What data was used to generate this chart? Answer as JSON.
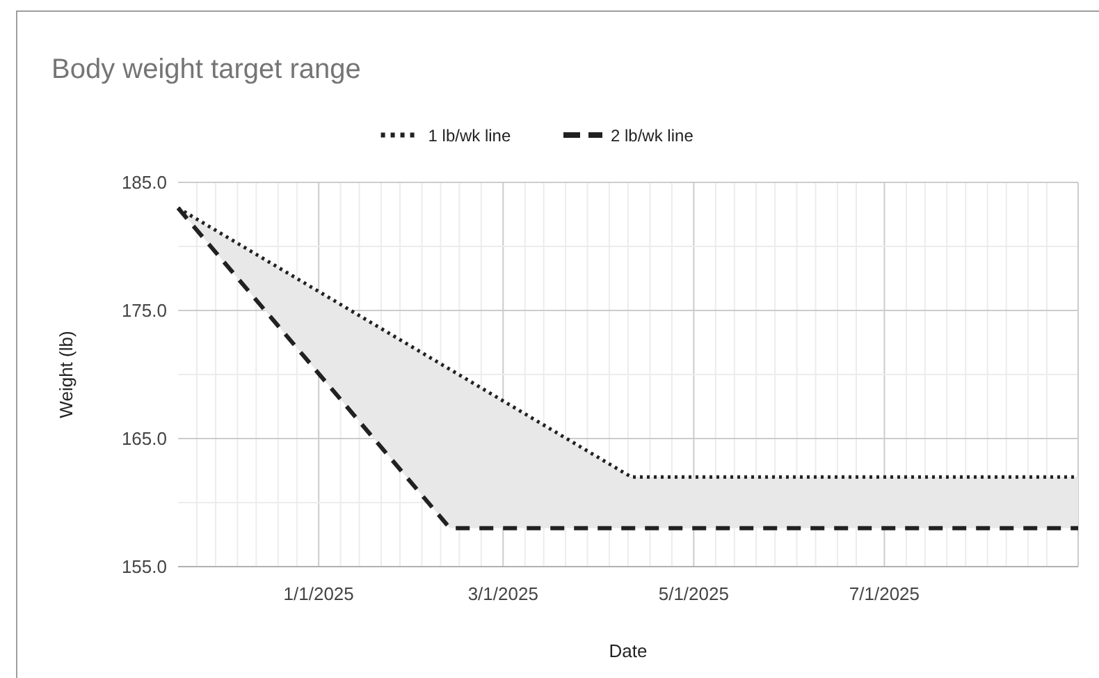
{
  "chart_data": {
    "type": "line",
    "title": "Body weight target range",
    "xlabel": "Date",
    "ylabel": "Weight (lb)",
    "xlim": [
      "2024-11-17",
      "2025-09-01"
    ],
    "xticks": [
      {
        "value": "2024-11-23",
        "label": null
      },
      {
        "value": "2024-11-29",
        "label": null
      },
      {
        "value": "2024-12-06",
        "label": null
      },
      {
        "value": "2024-12-12",
        "label": null
      },
      {
        "value": "2024-12-19",
        "label": null
      },
      {
        "value": "2024-12-25",
        "label": null
      },
      {
        "value": "2025-01-01",
        "label": "1/1/2025"
      },
      {
        "value": "2025-01-08",
        "label": null
      },
      {
        "value": "2025-01-14",
        "label": null
      },
      {
        "value": "2025-01-21",
        "label": null
      },
      {
        "value": "2025-01-27",
        "label": null
      },
      {
        "value": "2025-02-03",
        "label": null
      },
      {
        "value": "2025-02-09",
        "label": null
      },
      {
        "value": "2025-02-15",
        "label": null
      },
      {
        "value": "2025-02-22",
        "label": null
      },
      {
        "value": "2025-03-01",
        "label": "3/1/2025"
      },
      {
        "value": "2025-03-08",
        "label": null
      },
      {
        "value": "2025-03-14",
        "label": null
      },
      {
        "value": "2025-03-21",
        "label": null
      },
      {
        "value": "2025-03-28",
        "label": null
      },
      {
        "value": "2025-04-04",
        "label": null
      },
      {
        "value": "2025-04-10",
        "label": null
      },
      {
        "value": "2025-04-17",
        "label": null
      },
      {
        "value": "2025-04-24",
        "label": null
      },
      {
        "value": "2025-05-01",
        "label": "5/1/2025"
      },
      {
        "value": "2025-05-08",
        "label": null
      },
      {
        "value": "2025-05-14",
        "label": null
      },
      {
        "value": "2025-05-21",
        "label": null
      },
      {
        "value": "2025-05-27",
        "label": null
      },
      {
        "value": "2025-06-03",
        "label": null
      },
      {
        "value": "2025-06-09",
        "label": null
      },
      {
        "value": "2025-06-16",
        "label": null
      },
      {
        "value": "2025-06-22",
        "label": null
      },
      {
        "value": "2025-07-01",
        "label": "7/1/2025"
      },
      {
        "value": "2025-07-08",
        "label": null
      },
      {
        "value": "2025-07-14",
        "label": null
      },
      {
        "value": "2025-07-21",
        "label": null
      },
      {
        "value": "2025-07-27",
        "label": null
      },
      {
        "value": "2025-08-03",
        "label": null
      },
      {
        "value": "2025-08-09",
        "label": null
      },
      {
        "value": "2025-08-16",
        "label": null
      },
      {
        "value": "2025-08-22",
        "label": null
      }
    ],
    "ylim": [
      155,
      185
    ],
    "yticks": [
      {
        "value": 155,
        "label": "155.0"
      },
      {
        "value": 160,
        "label": null
      },
      {
        "value": 165,
        "label": "165.0"
      },
      {
        "value": 170,
        "label": null
      },
      {
        "value": 175,
        "label": "175.0"
      },
      {
        "value": 180,
        "label": null
      },
      {
        "value": 185,
        "label": "185.0"
      }
    ],
    "grid": true,
    "legend": "top",
    "series": [
      {
        "name": "1 lb/wk line",
        "color": "#212121",
        "line_style": "dotted",
        "x": [
          "2024-11-17",
          "2025-02-12",
          "2025-04-11",
          "2025-09-01"
        ],
        "values": [
          183,
          170.4,
          162,
          162
        ],
        "lower": [
          183,
          158,
          158,
          158
        ],
        "upper": [
          183,
          170.4,
          162,
          162
        ]
      },
      {
        "name": "2 lb/wk line",
        "color": "#212121",
        "line_style": "dashed",
        "x": [
          "2024-11-17",
          "2025-02-12",
          "2025-09-01"
        ],
        "values": [
          183,
          158,
          158
        ]
      }
    ]
  }
}
